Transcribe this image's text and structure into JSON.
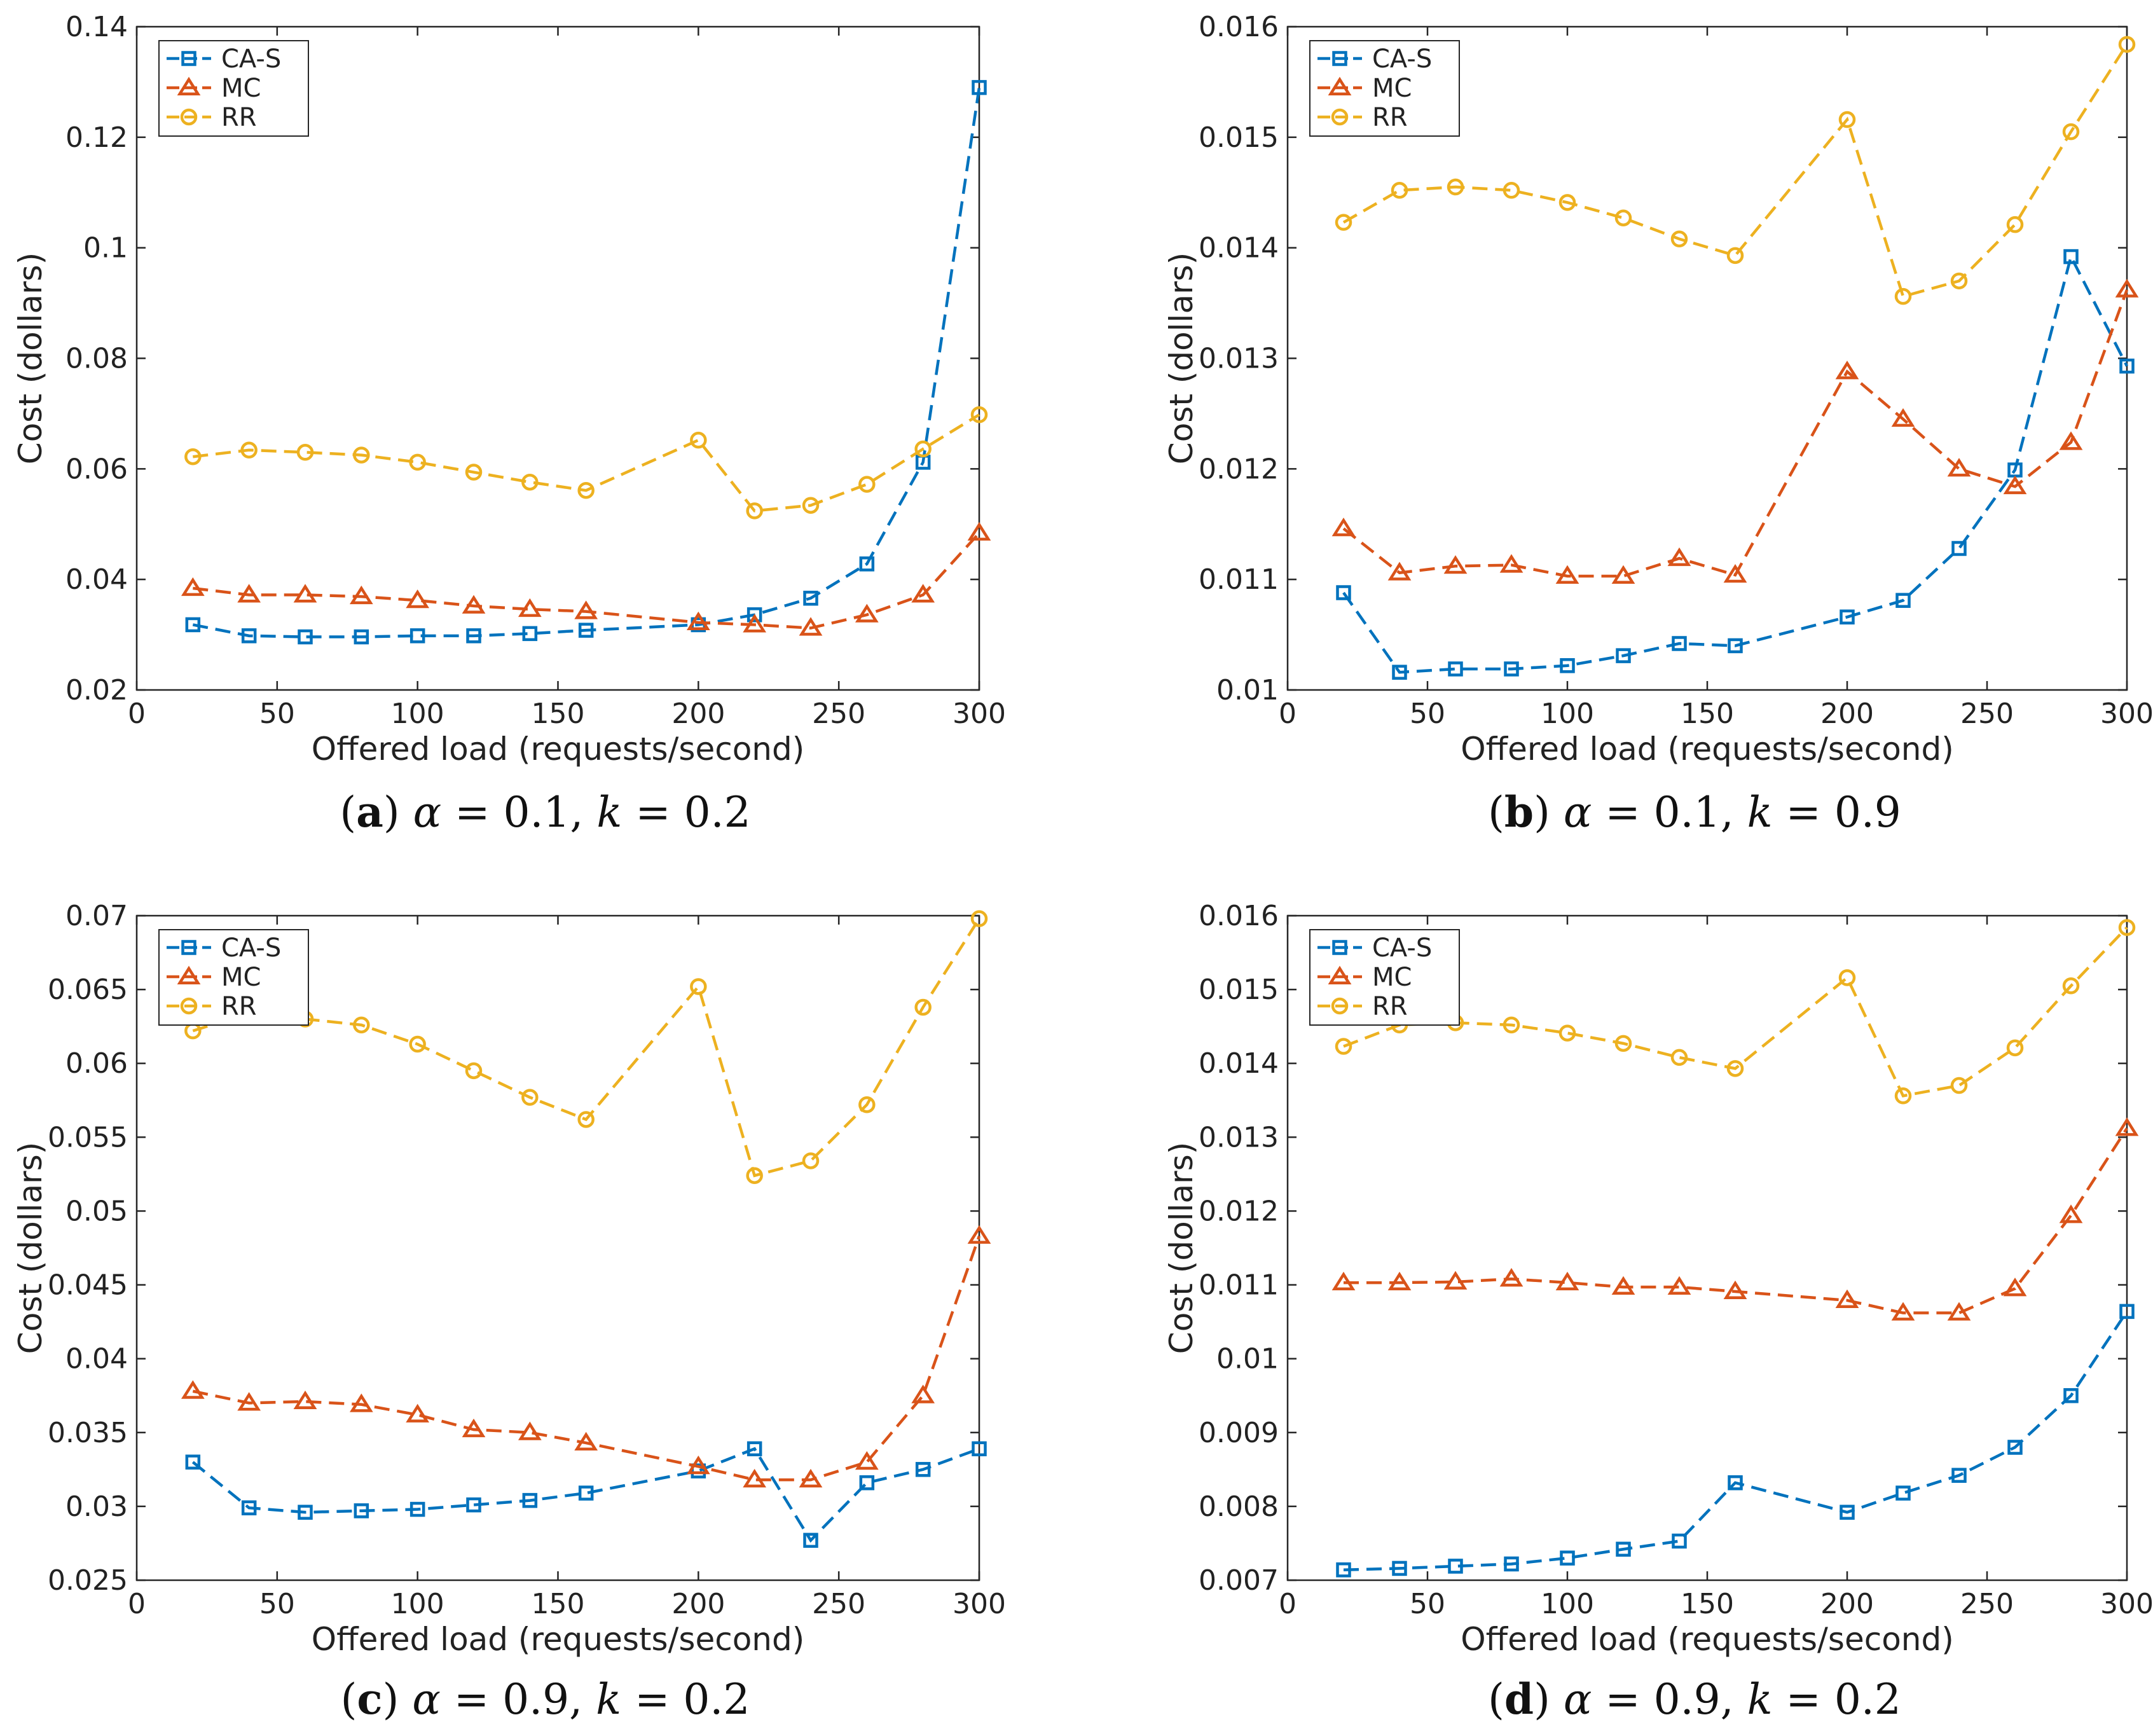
{
  "colors": {
    "CA-S": "#0072BD",
    "MC": "#D95319",
    "RR": "#EDB120"
  },
  "chart_data": [
    {
      "type": "line",
      "caption": {
        "label": "a",
        "alpha": "0.1",
        "k": "0.2"
      },
      "xlabel": "Offered load (requests/second)",
      "ylabel": "Cost (dollars)",
      "xlim": [
        0,
        300
      ],
      "ylim": [
        0.02,
        0.14
      ],
      "xticks": [
        0,
        50,
        100,
        150,
        200,
        250,
        300
      ],
      "xtick_labels": [
        "0",
        "50",
        "100",
        "150",
        "200",
        "250",
        "300"
      ],
      "yticks": [
        0.02,
        0.04,
        0.06,
        0.08,
        0.1,
        0.12,
        0.14
      ],
      "ytick_labels": [
        "0.02",
        "0.04",
        "0.06",
        "0.08",
        "0.1",
        "0.12",
        "0.14"
      ],
      "legend": "top-left",
      "x": [
        20,
        40,
        60,
        80,
        100,
        120,
        140,
        160,
        200,
        220,
        240,
        260,
        280,
        300
      ],
      "series": [
        {
          "name": "CA-S",
          "marker": "square",
          "values": [
            0.0318,
            0.0298,
            0.0296,
            0.0296,
            0.0298,
            0.0298,
            0.0302,
            0.0308,
            0.0318,
            0.0336,
            0.0366,
            0.0428,
            0.0612,
            0.129
          ]
        },
        {
          "name": "MC",
          "marker": "triangle",
          "values": [
            0.0384,
            0.0372,
            0.0372,
            0.0369,
            0.0362,
            0.0352,
            0.0346,
            0.0342,
            0.0322,
            0.0318,
            0.0312,
            0.0336,
            0.0372,
            0.0484
          ]
        },
        {
          "name": "RR",
          "marker": "circle",
          "values": [
            0.0622,
            0.0634,
            0.063,
            0.0625,
            0.0612,
            0.0594,
            0.0576,
            0.0561,
            0.0652,
            0.0524,
            0.0534,
            0.0572,
            0.0636,
            0.0698
          ]
        }
      ]
    },
    {
      "type": "line",
      "caption": {
        "label": "b",
        "alpha": "0.1",
        "k": "0.9"
      },
      "xlabel": "Offered load (requests/second)",
      "ylabel": "Cost (dollars)",
      "xlim": [
        0,
        300
      ],
      "ylim": [
        0.01,
        0.016
      ],
      "xticks": [
        0,
        50,
        100,
        150,
        200,
        250,
        300
      ],
      "xtick_labels": [
        "0",
        "50",
        "100",
        "150",
        "200",
        "250",
        "300"
      ],
      "yticks": [
        0.01,
        0.011,
        0.012,
        0.013,
        0.014,
        0.015,
        0.016
      ],
      "ytick_labels": [
        "0.01",
        "0.011",
        "0.012",
        "0.013",
        "0.014",
        "0.015",
        "0.016"
      ],
      "legend": "top-left",
      "x": [
        20,
        40,
        60,
        80,
        100,
        120,
        140,
        160,
        200,
        220,
        240,
        260,
        280,
        300
      ],
      "series": [
        {
          "name": "CA-S",
          "marker": "square",
          "values": [
            0.01088,
            0.01016,
            0.01019,
            0.01019,
            0.01022,
            0.01031,
            0.01042,
            0.0104,
            0.01066,
            0.01081,
            0.01128,
            0.01199,
            0.01392,
            0.01293
          ]
        },
        {
          "name": "MC",
          "marker": "triangle",
          "values": [
            0.01146,
            0.01106,
            0.01112,
            0.01113,
            0.01103,
            0.01103,
            0.01119,
            0.01104,
            0.01288,
            0.01245,
            0.012,
            0.01184,
            0.01224,
            0.01362
          ]
        },
        {
          "name": "RR",
          "marker": "circle",
          "values": [
            0.01423,
            0.01452,
            0.01455,
            0.01452,
            0.01441,
            0.01427,
            0.01408,
            0.01393,
            0.01516,
            0.01356,
            0.0137,
            0.01421,
            0.01505,
            0.01584
          ]
        }
      ]
    },
    {
      "type": "line",
      "caption": {
        "label": "c",
        "alpha": "0.9",
        "k": "0.2"
      },
      "xlabel": "Offered load (requests/second)",
      "ylabel": "Cost (dollars)",
      "xlim": [
        0,
        300
      ],
      "ylim": [
        0.025,
        0.07
      ],
      "xticks": [
        0,
        50,
        100,
        150,
        200,
        250,
        300
      ],
      "xtick_labels": [
        "0",
        "50",
        "100",
        "150",
        "200",
        "250",
        "300"
      ],
      "yticks": [
        0.025,
        0.03,
        0.035,
        0.04,
        0.045,
        0.05,
        0.055,
        0.06,
        0.065,
        0.07
      ],
      "ytick_labels": [
        "0.025",
        "0.03",
        "0.035",
        "0.04",
        "0.045",
        "0.05",
        "0.055",
        "0.06",
        "0.065",
        "0.07"
      ],
      "legend": "top-left",
      "x": [
        20,
        40,
        60,
        80,
        100,
        120,
        140,
        160,
        200,
        220,
        240,
        260,
        280,
        300
      ],
      "series": [
        {
          "name": "CA-S",
          "marker": "square",
          "values": [
            0.033,
            0.0299,
            0.0296,
            0.0297,
            0.0298,
            0.0301,
            0.0304,
            0.0309,
            0.0324,
            0.0339,
            0.0277,
            0.0316,
            0.0325,
            0.0339
          ]
        },
        {
          "name": "MC",
          "marker": "triangle",
          "values": [
            0.0378,
            0.037,
            0.0371,
            0.0369,
            0.0362,
            0.0352,
            0.035,
            0.0343,
            0.0327,
            0.0318,
            0.0318,
            0.033,
            0.0375,
            0.0483
          ]
        },
        {
          "name": "RR",
          "marker": "circle",
          "values": [
            0.0622,
            0.0634,
            0.063,
            0.0626,
            0.0613,
            0.0595,
            0.0577,
            0.0562,
            0.0652,
            0.0524,
            0.0534,
            0.0572,
            0.0638,
            0.0698
          ]
        }
      ]
    },
    {
      "type": "line",
      "caption": {
        "label": "d",
        "alpha": "0.9",
        "k": "0.2"
      },
      "xlabel": "Offered load (requests/second)",
      "ylabel": "Cost (dollars)",
      "xlim": [
        0,
        300
      ],
      "ylim": [
        0.007,
        0.016
      ],
      "xticks": [
        0,
        50,
        100,
        150,
        200,
        250,
        300
      ],
      "xtick_labels": [
        "0",
        "50",
        "100",
        "150",
        "200",
        "250",
        "300"
      ],
      "yticks": [
        0.007,
        0.008,
        0.009,
        0.01,
        0.011,
        0.012,
        0.013,
        0.014,
        0.015,
        0.016
      ],
      "ytick_labels": [
        "0.007",
        "0.008",
        "0.009",
        "0.01",
        "0.011",
        "0.012",
        "0.013",
        "0.014",
        "0.015",
        "0.016"
      ],
      "legend": "top-left",
      "x": [
        20,
        40,
        60,
        80,
        100,
        120,
        140,
        160,
        200,
        220,
        240,
        260,
        280,
        300
      ],
      "series": [
        {
          "name": "CA-S",
          "marker": "square",
          "values": [
            0.00714,
            0.00716,
            0.00719,
            0.00722,
            0.0073,
            0.00742,
            0.00753,
            0.00832,
            0.00792,
            0.00818,
            0.00842,
            0.0088,
            0.0095,
            0.01064
          ]
        },
        {
          "name": "MC",
          "marker": "triangle",
          "values": [
            0.01103,
            0.01103,
            0.01104,
            0.01108,
            0.01103,
            0.01097,
            0.01097,
            0.01091,
            0.01079,
            0.01062,
            0.01062,
            0.01095,
            0.01194,
            0.01312
          ]
        },
        {
          "name": "RR",
          "marker": "circle",
          "values": [
            0.01423,
            0.01452,
            0.01455,
            0.01452,
            0.01441,
            0.01427,
            0.01408,
            0.01393,
            0.01516,
            0.01356,
            0.0137,
            0.01421,
            0.01505,
            0.01584
          ]
        }
      ]
    }
  ]
}
